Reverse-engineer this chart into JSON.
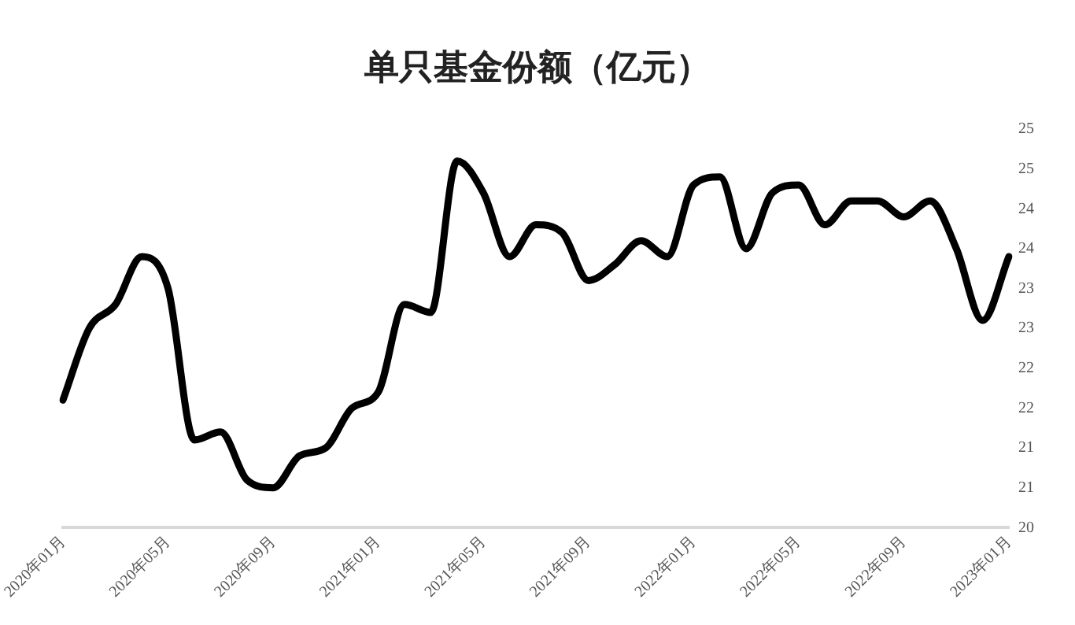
{
  "chart_data": {
    "type": "line",
    "title": "单只基金份额（亿元）",
    "categories": [
      "2020年01月",
      null,
      null,
      null,
      "2020年05月",
      null,
      null,
      null,
      "2020年09月",
      null,
      null,
      null,
      "2021年01月",
      null,
      null,
      null,
      "2021年05月",
      null,
      null,
      null,
      "2021年09月",
      null,
      null,
      null,
      "2022年01月",
      null,
      null,
      null,
      "2022年05月",
      null,
      null,
      null,
      "2022年09月",
      null,
      null,
      null,
      "2023年01月"
    ],
    "series": [
      {
        "color": "#000000",
        "values": [
          21.6,
          22.5,
          22.8,
          23.4,
          23.0,
          21.1,
          21.2,
          20.6,
          20.5,
          20.9,
          21.0,
          21.5,
          21.7,
          22.8,
          22.7,
          24.6,
          24.2,
          23.4,
          23.8,
          23.7,
          23.1,
          23.3,
          23.6,
          23.4,
          24.3,
          24.4,
          23.5,
          24.2,
          24.3,
          23.8,
          24.1,
          24.1,
          23.9,
          24.1,
          23.5,
          22.6,
          23.4
        ]
      }
    ],
    "ylim": [
      20,
      25
    ],
    "yticks": [
      20,
      {
        "value": 20.5,
        "label": "21"
      },
      21,
      {
        "value": 21.5,
        "label": "22"
      },
      22,
      {
        "value": 22.5,
        "label": "23"
      },
      23,
      {
        "value": 23.5,
        "label": "24"
      },
      24,
      {
        "value": 24.5,
        "label": "25"
      },
      25
    ],
    "grid": false,
    "legend": false,
    "marker": "none",
    "line_style": "solid"
  }
}
